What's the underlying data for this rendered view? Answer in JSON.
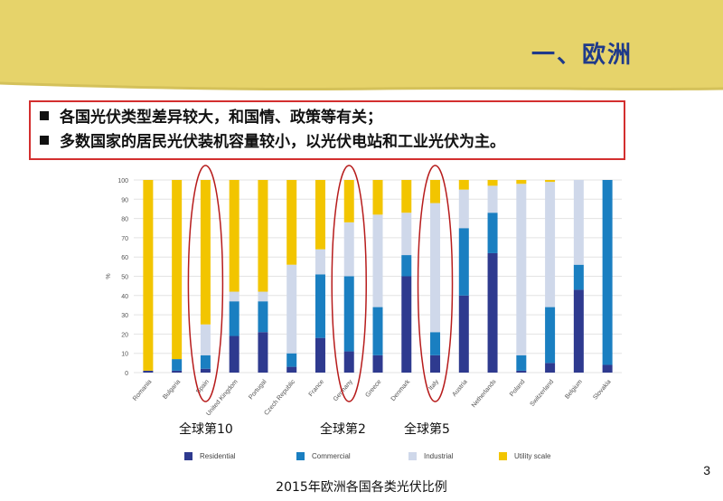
{
  "slide": {
    "title": "一、欧洲",
    "bullets": [
      "各国光伏类型差异较大，和国情、政策等有关；",
      "多数国家的居民光伏装机容量较小，以光伏电站和工业光伏为主。"
    ],
    "rank_labels": [
      "全球第10",
      "全球第2",
      "全球第5"
    ],
    "caption": "2015年欧洲各国各类光伏比例",
    "page_number": "3"
  },
  "colors": {
    "residential": "#2e3a8f",
    "commercial": "#1a7fc1",
    "industrial": "#cfd8ea",
    "utility": "#f2c500",
    "banner": "#e6d36a",
    "highlight": "#b71c1c"
  },
  "chart_data": {
    "type": "bar",
    "stacked": true,
    "categories": [
      "Romania",
      "Bulgaria",
      "Spain",
      "United Kingdom",
      "Portugal",
      "Czech Republic",
      "France",
      "Germany",
      "Greece",
      "Denmark",
      "Italy",
      "Austria",
      "Netherlands",
      "Poland",
      "Switzerland",
      "Belgium",
      "Slovakia"
    ],
    "series": [
      {
        "name": "Residential",
        "values": [
          1,
          1,
          2,
          19,
          21,
          3,
          18,
          11,
          9,
          50,
          9,
          40,
          62,
          1,
          5,
          43,
          4
        ]
      },
      {
        "name": "Commercial",
        "values": [
          0,
          6,
          7,
          18,
          16,
          7,
          33,
          39,
          25,
          11,
          12,
          35,
          21,
          8,
          29,
          13,
          96
        ]
      },
      {
        "name": "Industrial",
        "values": [
          0,
          0,
          16,
          5,
          5,
          46,
          13,
          28,
          48,
          22,
          67,
          20,
          14,
          89,
          65,
          44,
          0
        ]
      },
      {
        "name": "Utility scale",
        "values": [
          99,
          93,
          75,
          58,
          58,
          44,
          36,
          22,
          18,
          17,
          12,
          5,
          3,
          2,
          1,
          0,
          0
        ]
      }
    ],
    "ylabel": "%",
    "ylim": [
      0,
      100
    ],
    "yticks": [
      0,
      10,
      20,
      30,
      40,
      50,
      60,
      70,
      80,
      90,
      100
    ],
    "highlighted": [
      "Spain",
      "Germany",
      "Italy"
    ],
    "legend_position": "bottom"
  }
}
